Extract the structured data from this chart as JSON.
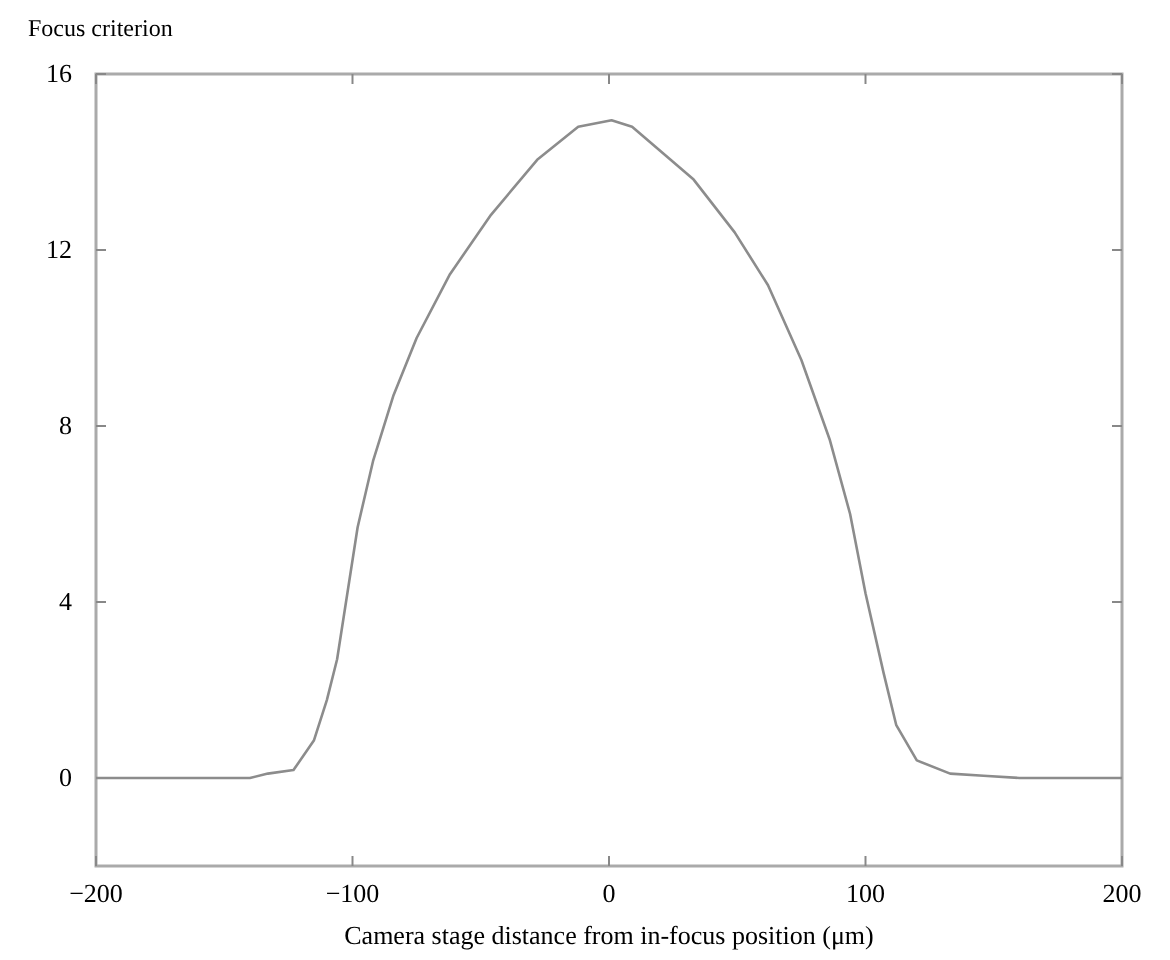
{
  "chart_data": {
    "type": "line",
    "xlabel": "Camera stage distance from in-focus position (μm)",
    "ylabel": "Focus criterion",
    "xlim": [
      -200,
      200
    ],
    "ylim": [
      -2,
      16
    ],
    "xticks": [
      -200,
      -100,
      0,
      100,
      200
    ],
    "yticks": [
      0,
      4,
      8,
      12,
      16
    ],
    "grid": false,
    "marker": "none",
    "line_style": "solid",
    "series": [
      {
        "color": "#8c8c8c",
        "x": [
          -200,
          -160,
          -140,
          -133,
          -123,
          -115,
          -110,
          -106,
          -102,
          -98,
          -92,
          -84,
          -75,
          -62,
          -46,
          -28,
          -12,
          1,
          9,
          33,
          49,
          62,
          75,
          86,
          94,
          100,
          107,
          112,
          120,
          133,
          146,
          160,
          200
        ],
        "values": [
          0,
          0,
          0,
          0.1,
          0.18,
          0.86,
          1.77,
          2.7,
          4.2,
          5.7,
          7.2,
          8.7,
          10,
          11.45,
          12.8,
          14.05,
          14.8,
          14.95,
          14.8,
          13.6,
          12.4,
          11.2,
          9.5,
          7.7,
          6,
          4.2,
          2.4,
          1.2,
          0.4,
          0.1,
          0.05,
          0,
          0
        ]
      }
    ]
  }
}
